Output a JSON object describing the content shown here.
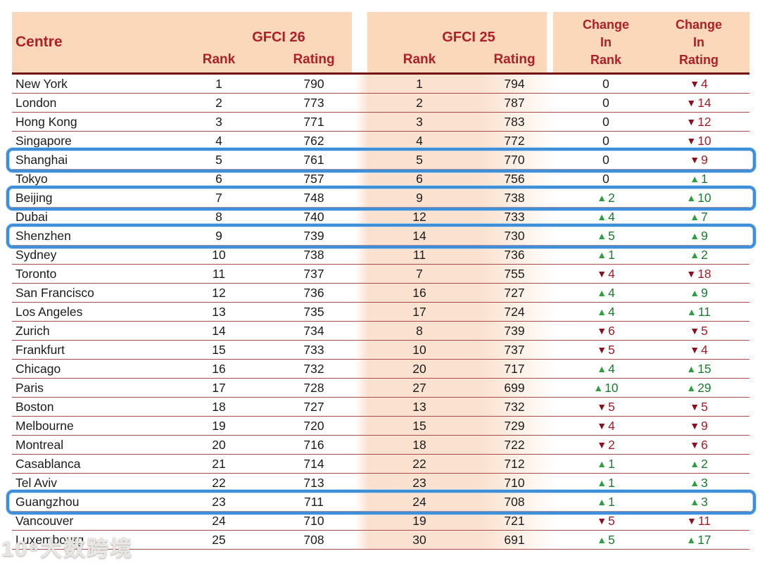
{
  "watermark": "10⁸大数跨境",
  "colors": {
    "header_bg": "#fcd8ba",
    "header_text": "#ad2024",
    "band_bg": "#fbe2d0",
    "row_line": "#a54b4b",
    "header_underline": "#701113",
    "up_green": "#2f9e41",
    "down_red": "#8c0f1d",
    "highlight_blue": "#3e8ed8"
  },
  "chart_data": {
    "type": "table",
    "header": {
      "centre": "Centre",
      "group_gfci26": "GFCI 26",
      "group_gfci25": "GFCI 25",
      "sub_rank_26": "Rank",
      "sub_rating_26": "Rating",
      "sub_rank_25": "Rank",
      "sub_rating_25": "Rating",
      "change_in_rank": "Change\nIn\nRank",
      "change_in_rating": "Change\nIn\nRating"
    },
    "highlighted_centres": [
      "Shanghai",
      "Beijing",
      "Shenzhen",
      "Guangzhou"
    ],
    "rows": [
      {
        "centre": "New York",
        "gfci26_rank": "1",
        "gfci26_rating": "790",
        "gfci25_rank": "1",
        "gfci25_rating": "794",
        "change_rank": {
          "dir": "none",
          "value": "0"
        },
        "change_rating": {
          "dir": "down",
          "value": "4"
        },
        "highlighted": false
      },
      {
        "centre": "London",
        "gfci26_rank": "2",
        "gfci26_rating": "773",
        "gfci25_rank": "2",
        "gfci25_rating": "787",
        "change_rank": {
          "dir": "none",
          "value": "0"
        },
        "change_rating": {
          "dir": "down",
          "value": "14"
        },
        "highlighted": false
      },
      {
        "centre": "Hong Kong",
        "gfci26_rank": "3",
        "gfci26_rating": "771",
        "gfci25_rank": "3",
        "gfci25_rating": "783",
        "change_rank": {
          "dir": "none",
          "value": "0"
        },
        "change_rating": {
          "dir": "down",
          "value": "12"
        },
        "highlighted": false
      },
      {
        "centre": "Singapore",
        "gfci26_rank": "4",
        "gfci26_rating": "762",
        "gfci25_rank": "4",
        "gfci25_rating": "772",
        "change_rank": {
          "dir": "none",
          "value": "0"
        },
        "change_rating": {
          "dir": "down",
          "value": "10"
        },
        "highlighted": false
      },
      {
        "centre": "Shanghai",
        "gfci26_rank": "5",
        "gfci26_rating": "761",
        "gfci25_rank": "5",
        "gfci25_rating": "770",
        "change_rank": {
          "dir": "none",
          "value": "0"
        },
        "change_rating": {
          "dir": "down",
          "value": "9"
        },
        "highlighted": true
      },
      {
        "centre": "Tokyo",
        "gfci26_rank": "6",
        "gfci26_rating": "757",
        "gfci25_rank": "6",
        "gfci25_rating": "756",
        "change_rank": {
          "dir": "none",
          "value": "0"
        },
        "change_rating": {
          "dir": "up",
          "value": "1"
        },
        "highlighted": false
      },
      {
        "centre": "Beijing",
        "gfci26_rank": "7",
        "gfci26_rating": "748",
        "gfci25_rank": "9",
        "gfci25_rating": "738",
        "change_rank": {
          "dir": "up",
          "value": "2"
        },
        "change_rating": {
          "dir": "up",
          "value": "10"
        },
        "highlighted": true
      },
      {
        "centre": "Dubai",
        "gfci26_rank": "8",
        "gfci26_rating": "740",
        "gfci25_rank": "12",
        "gfci25_rating": "733",
        "change_rank": {
          "dir": "up",
          "value": "4"
        },
        "change_rating": {
          "dir": "up",
          "value": "7"
        },
        "highlighted": false
      },
      {
        "centre": "Shenzhen",
        "gfci26_rank": "9",
        "gfci26_rating": "739",
        "gfci25_rank": "14",
        "gfci25_rating": "730",
        "change_rank": {
          "dir": "up",
          "value": "5"
        },
        "change_rating": {
          "dir": "up",
          "value": "9"
        },
        "highlighted": true
      },
      {
        "centre": "Sydney",
        "gfci26_rank": "10",
        "gfci26_rating": "738",
        "gfci25_rank": "11",
        "gfci25_rating": "736",
        "change_rank": {
          "dir": "up",
          "value": "1"
        },
        "change_rating": {
          "dir": "up",
          "value": "2"
        },
        "highlighted": false
      },
      {
        "centre": "Toronto",
        "gfci26_rank": "11",
        "gfci26_rating": "737",
        "gfci25_rank": "7",
        "gfci25_rating": "755",
        "change_rank": {
          "dir": "down",
          "value": "4"
        },
        "change_rating": {
          "dir": "down",
          "value": "18"
        },
        "highlighted": false
      },
      {
        "centre": "San Francisco",
        "gfci26_rank": "12",
        "gfci26_rating": "736",
        "gfci25_rank": "16",
        "gfci25_rating": "727",
        "change_rank": {
          "dir": "up",
          "value": "4"
        },
        "change_rating": {
          "dir": "up",
          "value": "9"
        },
        "highlighted": false
      },
      {
        "centre": "Los Angeles",
        "gfci26_rank": "13",
        "gfci26_rating": "735",
        "gfci25_rank": "17",
        "gfci25_rating": "724",
        "change_rank": {
          "dir": "up",
          "value": "4"
        },
        "change_rating": {
          "dir": "up",
          "value": "11"
        },
        "highlighted": false
      },
      {
        "centre": "Zurich",
        "gfci26_rank": "14",
        "gfci26_rating": "734",
        "gfci25_rank": "8",
        "gfci25_rating": "739",
        "change_rank": {
          "dir": "down",
          "value": "6"
        },
        "change_rating": {
          "dir": "down",
          "value": "5"
        },
        "highlighted": false
      },
      {
        "centre": "Frankfurt",
        "gfci26_rank": "15",
        "gfci26_rating": "733",
        "gfci25_rank": "10",
        "gfci25_rating": "737",
        "change_rank": {
          "dir": "down",
          "value": "5"
        },
        "change_rating": {
          "dir": "down",
          "value": "4"
        },
        "highlighted": false
      },
      {
        "centre": "Chicago",
        "gfci26_rank": "16",
        "gfci26_rating": "732",
        "gfci25_rank": "20",
        "gfci25_rating": "717",
        "change_rank": {
          "dir": "up",
          "value": "4"
        },
        "change_rating": {
          "dir": "up",
          "value": "15"
        },
        "highlighted": false
      },
      {
        "centre": "Paris",
        "gfci26_rank": "17",
        "gfci26_rating": "728",
        "gfci25_rank": "27",
        "gfci25_rating": "699",
        "change_rank": {
          "dir": "up",
          "value": "10"
        },
        "change_rating": {
          "dir": "up",
          "value": "29"
        },
        "highlighted": false
      },
      {
        "centre": "Boston",
        "gfci26_rank": "18",
        "gfci26_rating": "727",
        "gfci25_rank": "13",
        "gfci25_rating": "732",
        "change_rank": {
          "dir": "down",
          "value": "5"
        },
        "change_rating": {
          "dir": "down",
          "value": "5"
        },
        "highlighted": false
      },
      {
        "centre": "Melbourne",
        "gfci26_rank": "19",
        "gfci26_rating": "720",
        "gfci25_rank": "15",
        "gfci25_rating": "729",
        "change_rank": {
          "dir": "down",
          "value": "4"
        },
        "change_rating": {
          "dir": "down",
          "value": "9"
        },
        "highlighted": false
      },
      {
        "centre": "Montreal",
        "gfci26_rank": "20",
        "gfci26_rating": "716",
        "gfci25_rank": "18",
        "gfci25_rating": "722",
        "change_rank": {
          "dir": "down",
          "value": "2"
        },
        "change_rating": {
          "dir": "down",
          "value": "6"
        },
        "highlighted": false
      },
      {
        "centre": "Casablanca",
        "gfci26_rank": "21",
        "gfci26_rating": "714",
        "gfci25_rank": "22",
        "gfci25_rating": "712",
        "change_rank": {
          "dir": "up",
          "value": "1"
        },
        "change_rating": {
          "dir": "up",
          "value": "2"
        },
        "highlighted": false
      },
      {
        "centre": "Tel Aviv",
        "gfci26_rank": "22",
        "gfci26_rating": "713",
        "gfci25_rank": "23",
        "gfci25_rating": "710",
        "change_rank": {
          "dir": "up",
          "value": "1"
        },
        "change_rating": {
          "dir": "up",
          "value": "3"
        },
        "highlighted": false
      },
      {
        "centre": "Guangzhou",
        "gfci26_rank": "23",
        "gfci26_rating": "711",
        "gfci25_rank": "24",
        "gfci25_rating": "708",
        "change_rank": {
          "dir": "up",
          "value": "1"
        },
        "change_rating": {
          "dir": "up",
          "value": "3"
        },
        "highlighted": true
      },
      {
        "centre": "Vancouver",
        "gfci26_rank": "24",
        "gfci26_rating": "710",
        "gfci25_rank": "19",
        "gfci25_rating": "721",
        "change_rank": {
          "dir": "down",
          "value": "5"
        },
        "change_rating": {
          "dir": "down",
          "value": "11"
        },
        "highlighted": false
      },
      {
        "centre": "Luxembourg",
        "gfci26_rank": "25",
        "gfci26_rating": "708",
        "gfci25_rank": "30",
        "gfci25_rating": "691",
        "change_rank": {
          "dir": "up",
          "value": "5"
        },
        "change_rating": {
          "dir": "up",
          "value": "17"
        },
        "highlighted": false
      }
    ]
  }
}
